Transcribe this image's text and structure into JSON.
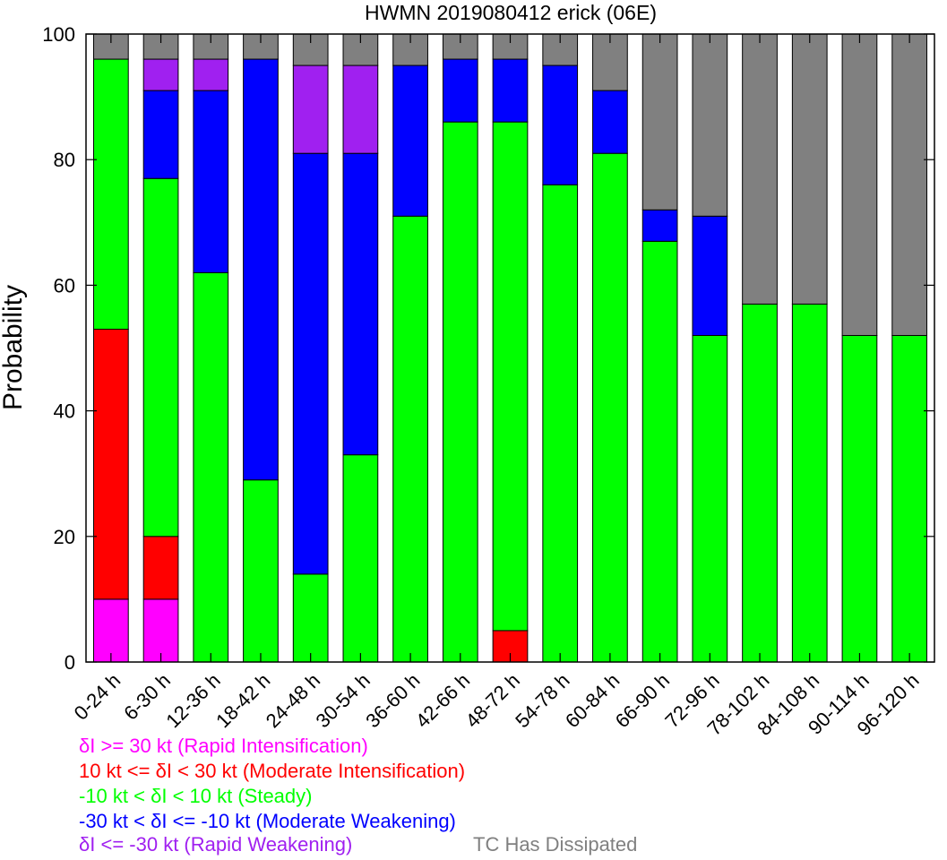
{
  "chart_data": {
    "type": "bar",
    "stacked": true,
    "title": "HWMN 2019080412 erick (06E)",
    "xlabel": "",
    "ylabel": "Probability",
    "ylim": [
      0,
      100
    ],
    "yticks": [
      0,
      20,
      40,
      60,
      80,
      100
    ],
    "grid": false,
    "categories": [
      "0-24 h",
      "6-30 h",
      "12-36 h",
      "18-42 h",
      "24-48 h",
      "30-54 h",
      "36-60 h",
      "42-66 h",
      "48-72 h",
      "54-78 h",
      "60-84 h",
      "66-90 h",
      "72-96 h",
      "78-102 h",
      "84-108 h",
      "90-114 h",
      "96-120 h"
    ],
    "series": [
      {
        "name": "δI >= 30 kt (Rapid Intensification)",
        "color": "#ff00ff",
        "values": [
          10,
          10,
          0,
          0,
          0,
          0,
          0,
          0,
          0,
          0,
          0,
          0,
          0,
          0,
          0,
          0,
          0
        ]
      },
      {
        "name": "10 kt <= δI < 30 kt (Moderate Intensification)",
        "color": "#ff0000",
        "values": [
          43,
          10,
          0,
          0,
          0,
          0,
          0,
          0,
          5,
          0,
          0,
          0,
          0,
          0,
          0,
          0,
          0
        ]
      },
      {
        "name": "-10 kt < δI < 10 kt (Steady)",
        "color": "#00ff00",
        "values": [
          43,
          57,
          62,
          29,
          14,
          33,
          71,
          86,
          81,
          76,
          81,
          67,
          52,
          57,
          57,
          52,
          52
        ]
      },
      {
        "name": "-30 kt < δI <= -10 kt (Moderate Weakening)",
        "color": "#0000ff",
        "values": [
          0,
          14,
          29,
          67,
          67,
          48,
          24,
          10,
          10,
          19,
          10,
          5,
          19,
          0,
          0,
          0,
          0
        ]
      },
      {
        "name": "δI <= -30 kt (Rapid Weakening)",
        "color": "#a020f0",
        "values": [
          0,
          5,
          5,
          0,
          14,
          14,
          0,
          0,
          0,
          0,
          0,
          0,
          0,
          0,
          0,
          0,
          0
        ]
      },
      {
        "name": "TC Has Dissipated",
        "color": "#808080",
        "values": [
          4,
          4,
          4,
          4,
          5,
          5,
          5,
          4,
          4,
          5,
          9,
          28,
          29,
          43,
          43,
          48,
          48
        ]
      }
    ]
  },
  "legend": {
    "ri": "δI >= 30 kt (Rapid Intensification)",
    "mi": "10 kt <= δI < 30 kt (Moderate Intensification)",
    "steady": "-10 kt < δI < 10 kt (Steady)",
    "mw": "-30 kt < δI <= -10 kt (Moderate Weakening)",
    "rw": "δI <= -30 kt (Rapid Weakening)",
    "dissipated": "TC Has Dissipated"
  }
}
